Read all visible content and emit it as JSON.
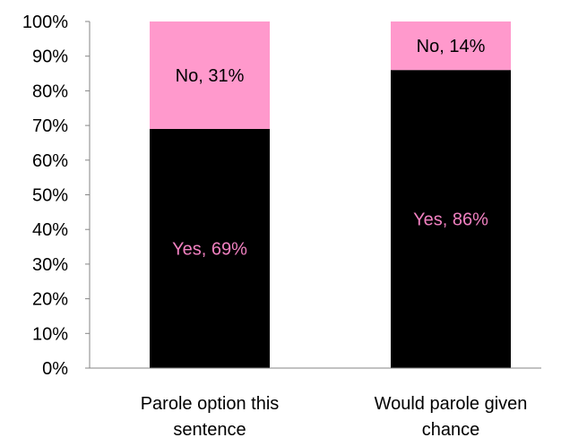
{
  "chart_data": {
    "type": "bar",
    "stacked": true,
    "percent_stacked": true,
    "categories": [
      "Parole option this sentence",
      "Would parole given chance"
    ],
    "category_label_lines": [
      [
        "Parole option this",
        "sentence"
      ],
      [
        "Would parole given",
        "chance"
      ]
    ],
    "series": [
      {
        "values": [
          69,
          86
        ],
        "color": "#000000",
        "label_color": "#f080c0",
        "data_labels": [
          "Yes, 69%",
          "Yes, 86%"
        ]
      },
      {
        "values": [
          31,
          14
        ],
        "color": "#ff99cc",
        "label_color": "#000000",
        "data_labels": [
          "No, 31%",
          "No, 14%"
        ]
      }
    ],
    "y_ticks": [
      "0%",
      "10%",
      "20%",
      "30%",
      "40%",
      "50%",
      "60%",
      "70%",
      "80%",
      "90%",
      "100%"
    ],
    "ylim": [
      0,
      100
    ],
    "grid": false,
    "legend": "none",
    "title": "",
    "xlabel": "",
    "ylabel": ""
  }
}
